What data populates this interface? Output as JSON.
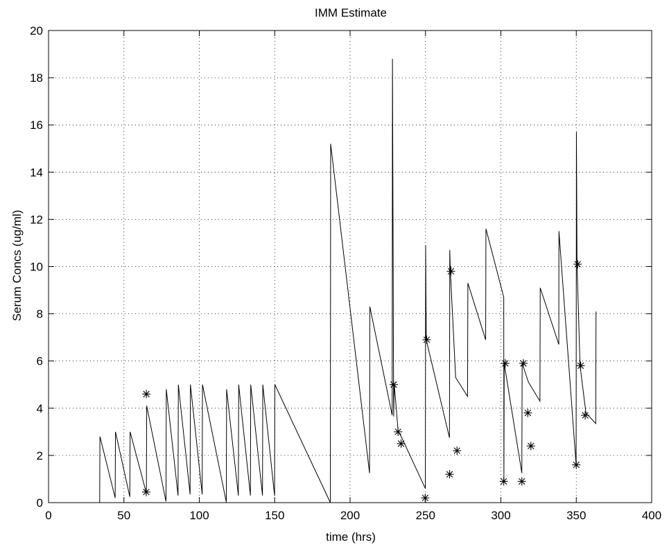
{
  "chart_data": {
    "type": "line",
    "title": "IMM Estimate",
    "xlabel": "time (hrs)",
    "ylabel": "Serum Concs (ug/ml)",
    "xlim": [
      0,
      400
    ],
    "ylim": [
      0,
      20
    ],
    "x_ticks": [
      0,
      50,
      100,
      150,
      200,
      250,
      300,
      350,
      400
    ],
    "y_ticks": [
      0,
      2,
      4,
      6,
      8,
      10,
      12,
      14,
      16,
      18,
      20
    ],
    "grid": true,
    "legend": "none",
    "series": [
      {
        "style": "line",
        "color": "#000000",
        "points": [
          [
            33.9,
            0
          ],
          [
            34.1,
            2.8
          ],
          [
            44.2,
            0.2
          ],
          [
            44.4,
            3.0
          ],
          [
            53.9,
            0.25
          ],
          [
            54.1,
            3.0
          ],
          [
            64.9,
            0.4
          ],
          [
            65.1,
            4.1
          ],
          [
            77.9,
            0.05
          ],
          [
            78.1,
            4.8
          ],
          [
            85.9,
            0.3
          ],
          [
            86.1,
            5.0
          ],
          [
            93.9,
            0.35
          ],
          [
            94.1,
            5.0
          ],
          [
            101.9,
            0.35
          ],
          [
            102.1,
            5.0
          ],
          [
            117.9,
            0.02
          ],
          [
            118.1,
            4.8
          ],
          [
            125.9,
            0.3
          ],
          [
            126.1,
            5.0
          ],
          [
            133.9,
            0.3
          ],
          [
            134.1,
            5.0
          ],
          [
            141.9,
            0.3
          ],
          [
            142.1,
            5.0
          ],
          [
            149.9,
            0.3
          ],
          [
            150.1,
            5.0
          ],
          [
            186.9,
            0
          ],
          [
            187.1,
            15.2
          ],
          [
            212.9,
            1.25
          ],
          [
            213.1,
            8.3
          ],
          [
            227.9,
            3.7
          ],
          [
            228.1,
            18.8
          ],
          [
            228.9,
            3.65
          ],
          [
            229.3,
            5.0
          ],
          [
            231.9,
            3.0
          ],
          [
            233.9,
            2.8
          ],
          [
            249.9,
            0.6
          ],
          [
            250.1,
            10.9
          ],
          [
            250.5,
            6.9
          ],
          [
            265.9,
            2.75
          ],
          [
            266.1,
            10.7
          ],
          [
            266.5,
            9.8
          ],
          [
            270.0,
            5.3
          ],
          [
            277.9,
            4.5
          ],
          [
            278.1,
            9.3
          ],
          [
            289.9,
            6.9
          ],
          [
            290.1,
            11.6
          ],
          [
            301.9,
            8.7
          ],
          [
            302.0,
            0.85
          ],
          [
            302.2,
            5.9
          ],
          [
            313.9,
            1.25
          ],
          [
            314.1,
            5.9
          ],
          [
            318.3,
            5.1
          ],
          [
            325.9,
            4.3
          ],
          [
            326.1,
            9.1
          ],
          [
            338.4,
            6.7
          ],
          [
            338.5,
            11.5
          ],
          [
            349.9,
            1.6
          ],
          [
            350.1,
            15.7
          ],
          [
            350.5,
            10.1
          ],
          [
            352.5,
            5.8
          ],
          [
            356.4,
            3.8
          ],
          [
            362.9,
            3.35
          ],
          [
            363.1,
            8.1
          ]
        ]
      },
      {
        "style": "marker",
        "marker": "asterisk",
        "color": "#000000",
        "points": [
          [
            64.9,
            4.6
          ],
          [
            64.8,
            0.45
          ],
          [
            228.9,
            5.0
          ],
          [
            231.8,
            3.0
          ],
          [
            233.8,
            2.5
          ],
          [
            249.8,
            0.2
          ],
          [
            250.8,
            6.9
          ],
          [
            266.0,
            1.2
          ],
          [
            266.9,
            9.8
          ],
          [
            270.9,
            2.2
          ],
          [
            301.9,
            0.9
          ],
          [
            302.9,
            5.9
          ],
          [
            313.9,
            0.9
          ],
          [
            314.9,
            5.9
          ],
          [
            317.9,
            3.8
          ],
          [
            319.9,
            2.4
          ],
          [
            350.0,
            1.6
          ],
          [
            350.9,
            10.1
          ],
          [
            352.9,
            5.8
          ],
          [
            355.9,
            3.7
          ]
        ]
      }
    ]
  }
}
